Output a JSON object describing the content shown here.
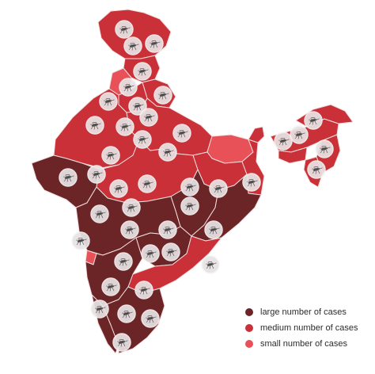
{
  "colors": {
    "large": "#6b2527",
    "medium": "#c93038",
    "small": "#e85157",
    "marker_fill": "#e8e3e4",
    "marker_ring": "#f7f3f3",
    "marker_icon": "#4a4a4a"
  },
  "legend": [
    {
      "key": "large",
      "label": "large number of cases",
      "color": "#6b2527"
    },
    {
      "key": "medium",
      "label": "medium number of cases",
      "color": "#c93038"
    },
    {
      "key": "small",
      "label": "small number of cases",
      "color": "#e85157"
    }
  ],
  "marker_icon": "mosquito-icon"
}
